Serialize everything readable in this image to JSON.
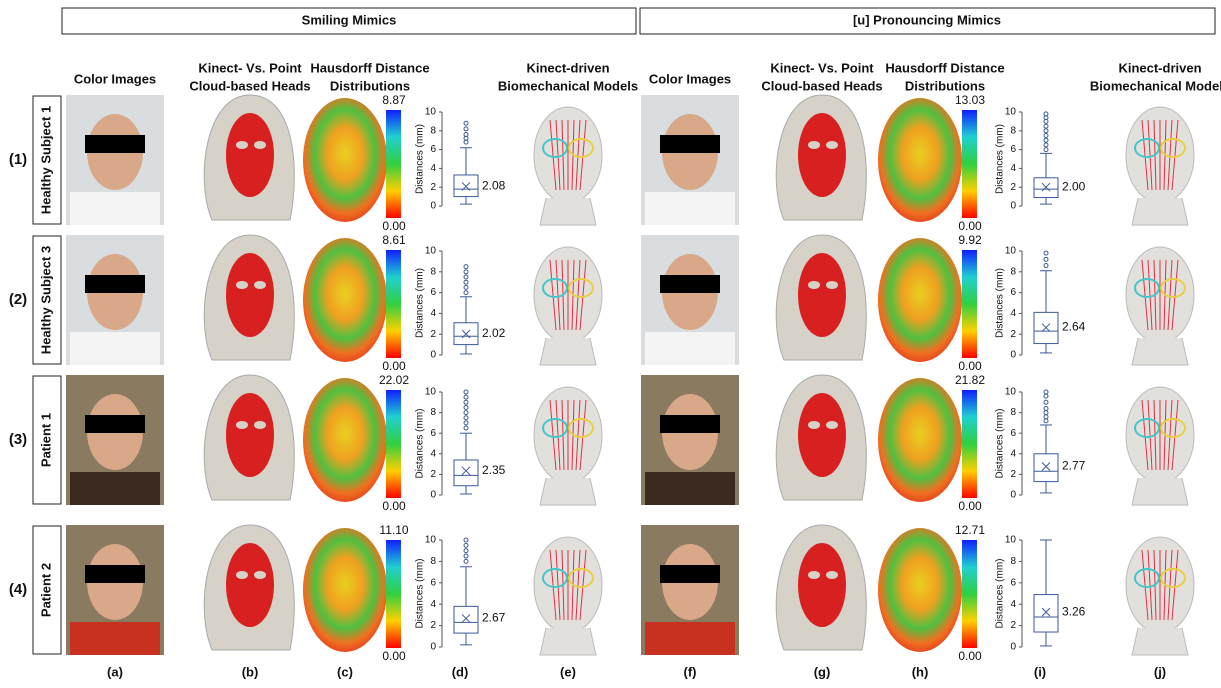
{
  "panels": [
    {
      "title": "Smiling Mimics"
    },
    {
      "title": "[u] Pronouncing Mimics"
    }
  ],
  "columns": [
    {
      "header": [
        "Color Images"
      ],
      "letter": "(a)"
    },
    {
      "header": [
        "Kinect- Vs. Point",
        "Cloud-based Heads"
      ],
      "letter": "(b)"
    },
    {
      "header": [
        "Hausdorff Distance",
        "Distributions"
      ],
      "letter": "(c)"
    },
    {
      "letter": "(d)"
    },
    {
      "header": [
        "Kinect-driven",
        "Biomechanical Models"
      ],
      "letter": "(e)"
    },
    {
      "header": [
        "Color Images"
      ],
      "letter": "(f)"
    },
    {
      "header": [
        "Kinect- Vs. Point",
        "Cloud-based Heads"
      ],
      "letter": "(g)"
    },
    {
      "header": [
        "Hausdorff Distance",
        "Distributions"
      ],
      "letter": "(h)"
    },
    {
      "letter": "(i)"
    },
    {
      "header": [
        "Kinect-driven",
        "Biomechanical Models"
      ],
      "letter": "(j)"
    }
  ],
  "rows": [
    {
      "number": "(1)",
      "label": "Healthy Subject 1"
    },
    {
      "number": "(2)",
      "label": "Healthy Subject 3"
    },
    {
      "number": "(3)",
      "label": "Patient 1"
    },
    {
      "number": "(4)",
      "label": "Patient 2"
    }
  ],
  "colorbars": [
    {
      "max": "8.87",
      "min": "0.00"
    },
    {
      "max": "13.03",
      "min": "0.00"
    },
    {
      "max": "8.61",
      "min": "0.00"
    },
    {
      "max": "9.92",
      "min": "0.00"
    },
    {
      "max": "22.02",
      "min": "0.00"
    },
    {
      "max": "21.82",
      "min": "0.00"
    },
    {
      "max": "11.10",
      "min": "0.00"
    },
    {
      "max": "12.71",
      "min": "0.00"
    }
  ],
  "boxplot_axis": {
    "label": "Distances (mm)",
    "ylim": [
      0,
      10
    ],
    "yticks": [
      0,
      2,
      4,
      6,
      8,
      10
    ]
  },
  "boxplots": [
    {
      "min": 0.2,
      "q1": 1.0,
      "median": 1.8,
      "q3": 3.3,
      "max": 6.2,
      "mean": 2.08,
      "mean_label": "2.08",
      "outliers": [
        6.8,
        7.2,
        7.6,
        8.2,
        8.8
      ]
    },
    {
      "min": 0.2,
      "q1": 0.9,
      "median": 1.8,
      "q3": 3.0,
      "max": 5.6,
      "mean": 2.0,
      "mean_label": "2.00",
      "outliers": [
        6.0,
        6.5,
        7.0,
        7.5,
        8.0,
        8.5,
        9.0,
        9.4,
        9.8
      ]
    },
    {
      "min": 0.1,
      "q1": 1.0,
      "median": 1.8,
      "q3": 3.1,
      "max": 5.6,
      "mean": 2.02,
      "mean_label": "2.02",
      "outliers": [
        6.0,
        6.5,
        7.0,
        7.5,
        8.0,
        8.5
      ]
    },
    {
      "min": 0.2,
      "q1": 1.1,
      "median": 2.3,
      "q3": 4.1,
      "max": 8.1,
      "mean": 2.64,
      "mean_label": "2.64",
      "outliers": [
        8.6,
        9.2,
        9.8
      ]
    },
    {
      "min": 0.1,
      "q1": 0.9,
      "median": 1.9,
      "q3": 3.4,
      "max": 6.0,
      "mean": 2.35,
      "mean_label": "2.35",
      "outliers": [
        6.5,
        7.0,
        7.5,
        8.0,
        8.5,
        9.0,
        9.5,
        10.0
      ]
    },
    {
      "min": 0.2,
      "q1": 1.3,
      "median": 2.3,
      "q3": 4.0,
      "max": 6.8,
      "mean": 2.77,
      "mean_label": "2.77",
      "outliers": [
        7.2,
        7.6,
        8.0,
        8.4,
        9.0,
        9.6,
        10.0
      ]
    },
    {
      "min": 0.2,
      "q1": 1.3,
      "median": 2.3,
      "q3": 3.8,
      "max": 7.5,
      "mean": 2.67,
      "mean_label": "2.67",
      "outliers": [
        8.0,
        8.5,
        9.0,
        9.5,
        10.0
      ]
    },
    {
      "min": 0.1,
      "q1": 1.4,
      "median": 2.8,
      "q3": 4.9,
      "max": 10.0,
      "mean": 3.26,
      "mean_label": "3.26",
      "outliers": []
    }
  ]
}
